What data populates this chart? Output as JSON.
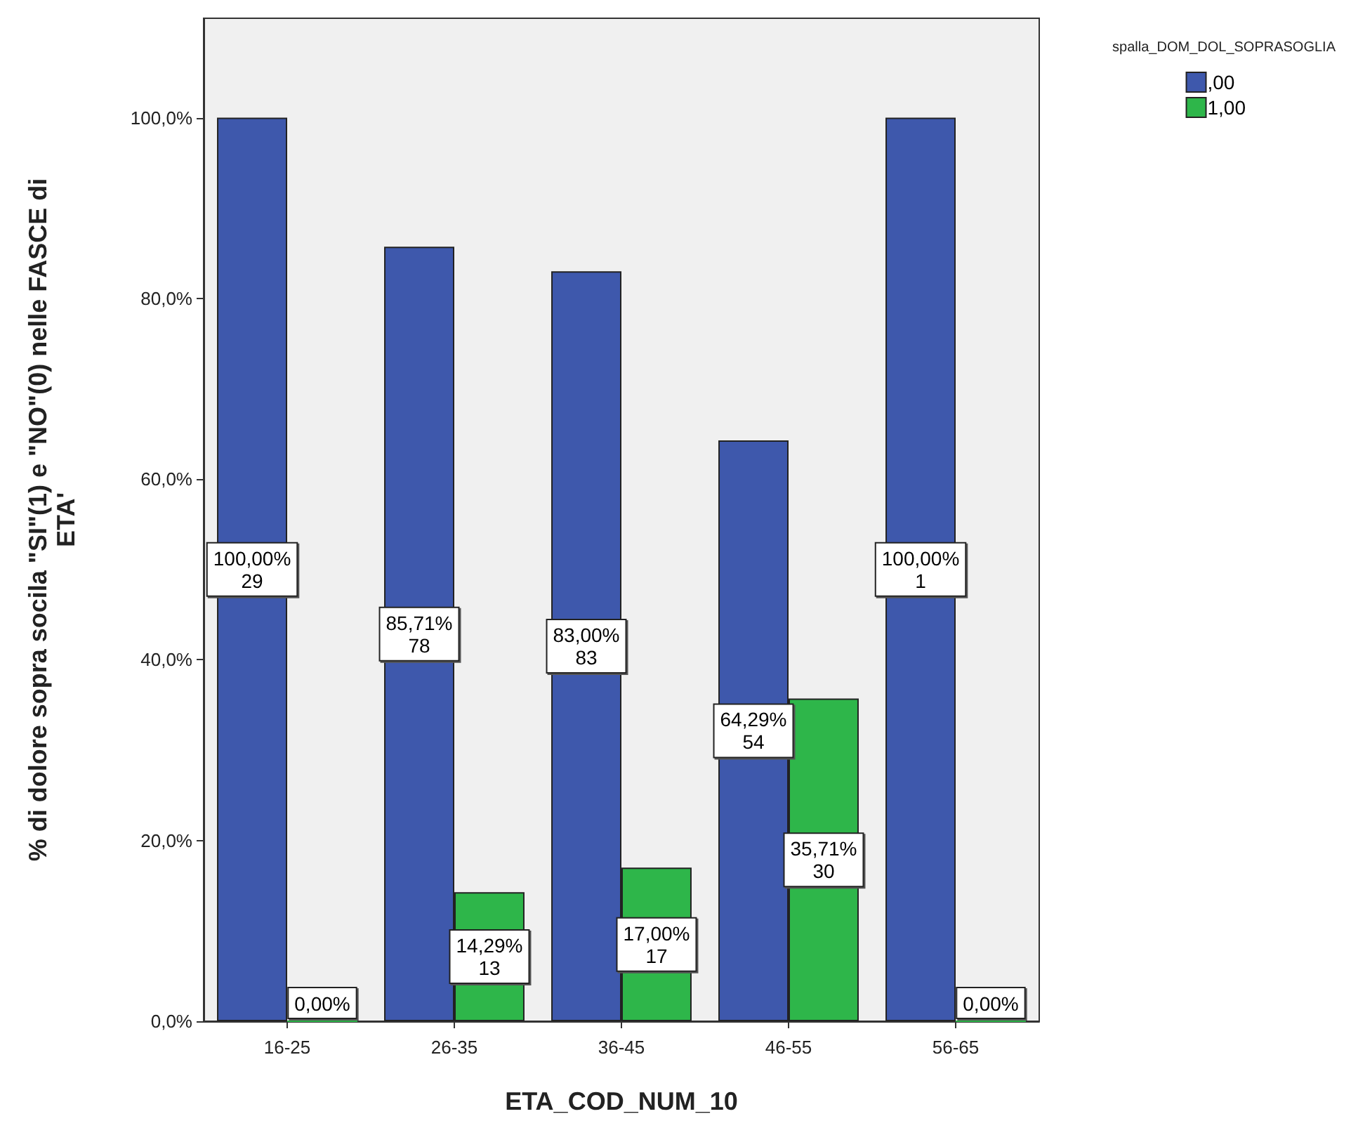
{
  "chart_data": {
    "type": "bar",
    "xlabel": "ETA_COD_NUM_10",
    "ylabel": "% di dolore sopra socila \"SI\"(1) e \"NO\"(0) nelle FASCE di\nETA'",
    "legend_title": "spalla_DOM_DOL_SOPRASOGLIA",
    "categories": [
      "16-25",
      "26-35",
      "36-45",
      "46-55",
      "56-65"
    ],
    "series": [
      {
        "name": ",00",
        "color": "#3e58ac",
        "values": [
          100,
          85.71,
          83.0,
          64.29,
          100
        ],
        "value_labels": [
          "100,00%\n29",
          "85,71%\n78",
          "83,00%\n83",
          "64,29%\n54",
          "100,00%\n1"
        ]
      },
      {
        "name": "1,00",
        "color": "#2eb64a",
        "values": [
          0,
          14.29,
          17.0,
          35.71,
          0
        ],
        "value_labels": [
          "0,00%",
          "14,29%\n13",
          "17,00%\n17",
          "35,71%\n30",
          "0,00%"
        ]
      }
    ],
    "ylim": [
      0,
      111
    ],
    "yticks": [
      {
        "value": 0,
        "label": "0,0%"
      },
      {
        "value": 20,
        "label": "20,0%"
      },
      {
        "value": 40,
        "label": "40,0%"
      },
      {
        "value": 60,
        "label": "60,0%"
      },
      {
        "value": 80,
        "label": "80,0%"
      },
      {
        "value": 100,
        "label": "100,0%"
      }
    ],
    "grid": false,
    "legend": "top right"
  }
}
